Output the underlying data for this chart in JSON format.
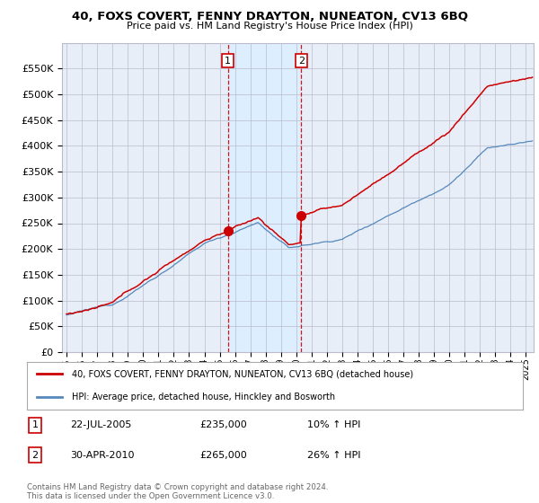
{
  "title": "40, FOXS COVERT, FENNY DRAYTON, NUNEATON, CV13 6BQ",
  "subtitle": "Price paid vs. HM Land Registry's House Price Index (HPI)",
  "ylim": [
    0,
    600000
  ],
  "sale1_date": "22-JUL-2005",
  "sale1_price": 235000,
  "sale1_year": 2005.54,
  "sale1_pct": "10%",
  "sale1_label": "1",
  "sale2_date": "30-APR-2010",
  "sale2_price": 265000,
  "sale2_year": 2010.33,
  "sale2_pct": "26%",
  "sale2_label": "2",
  "legend_label_red": "40, FOXS COVERT, FENNY DRAYTON, NUNEATON, CV13 6BQ (detached house)",
  "legend_label_blue": "HPI: Average price, detached house, Hinckley and Bosworth",
  "footer": "Contains HM Land Registry data © Crown copyright and database right 2024.\nThis data is licensed under the Open Government Licence v3.0.",
  "red_color": "#cc0000",
  "blue_color": "#5588bb",
  "vline_color": "#cc0000",
  "shade_color": "#ddeeff",
  "background_color": "#e8eef8",
  "grid_color": "#bbbbcc"
}
